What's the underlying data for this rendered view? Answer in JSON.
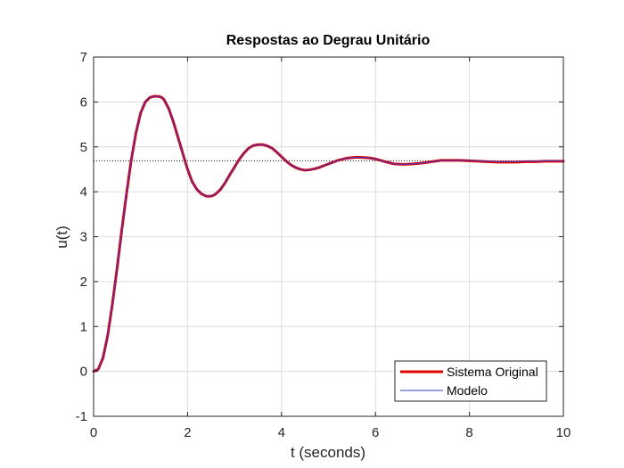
{
  "chart_data": {
    "type": "line",
    "title": "Respostas ao Degrau Unitário",
    "xlabel": "t (seconds)",
    "ylabel": "u(t)",
    "xlim": [
      0,
      10
    ],
    "ylim": [
      -1,
      7
    ],
    "xticks": [
      0,
      2,
      4,
      6,
      8,
      10
    ],
    "yticks": [
      -1,
      0,
      1,
      2,
      3,
      4,
      5,
      6,
      7
    ],
    "grid": true,
    "legend_position": "bottom-right",
    "steady_state_value": 4.69,
    "series": [
      {
        "name": "Sistema Original",
        "color": "#e00000",
        "style": "solid-thick",
        "x": [
          0,
          0.1,
          0.2,
          0.3,
          0.4,
          0.5,
          0.6,
          0.7,
          0.8,
          0.9,
          1.0,
          1.1,
          1.2,
          1.3,
          1.4,
          1.45,
          1.5,
          1.6,
          1.7,
          1.8,
          1.9,
          2.0,
          2.1,
          2.2,
          2.3,
          2.4,
          2.5,
          2.55,
          2.6,
          2.7,
          2.8,
          2.9,
          3.0,
          3.1,
          3.2,
          3.3,
          3.4,
          3.5,
          3.6,
          3.7,
          3.8,
          3.9,
          4.0,
          4.1,
          4.2,
          4.3,
          4.4,
          4.5,
          4.6,
          4.7,
          4.8,
          4.9,
          5.0,
          5.2,
          5.4,
          5.6,
          5.8,
          5.9,
          6.0,
          6.2,
          6.4,
          6.6,
          6.8,
          7.0,
          7.2,
          7.4,
          7.6,
          7.8,
          8.0,
          8.2,
          8.4,
          8.6,
          8.8,
          9.0,
          9.2,
          9.4,
          9.6,
          9.8,
          10.0
        ],
        "y": [
          0,
          0.05,
          0.3,
          0.8,
          1.5,
          2.3,
          3.15,
          3.95,
          4.7,
          5.3,
          5.75,
          6.0,
          6.1,
          6.13,
          6.12,
          6.1,
          6.05,
          5.85,
          5.55,
          5.2,
          4.85,
          4.5,
          4.22,
          4.05,
          3.95,
          3.9,
          3.9,
          3.92,
          3.95,
          4.05,
          4.2,
          4.38,
          4.55,
          4.72,
          4.86,
          4.97,
          5.03,
          5.05,
          5.05,
          5.02,
          4.97,
          4.88,
          4.78,
          4.68,
          4.6,
          4.54,
          4.5,
          4.48,
          4.49,
          4.51,
          4.54,
          4.58,
          4.62,
          4.7,
          4.75,
          4.77,
          4.76,
          4.75,
          4.73,
          4.67,
          4.62,
          4.61,
          4.62,
          4.64,
          4.67,
          4.7,
          4.7,
          4.7,
          4.69,
          4.68,
          4.67,
          4.66,
          4.66,
          4.66,
          4.67,
          4.67,
          4.68,
          4.68,
          4.68
        ]
      },
      {
        "name": "Modelo",
        "color": "#3b3bcc",
        "style": "solid-thin",
        "x": [
          0,
          0.1,
          0.2,
          0.3,
          0.4,
          0.5,
          0.6,
          0.7,
          0.8,
          0.9,
          1.0,
          1.1,
          1.2,
          1.3,
          1.4,
          1.45,
          1.5,
          1.6,
          1.7,
          1.8,
          1.9,
          2.0,
          2.1,
          2.2,
          2.3,
          2.4,
          2.5,
          2.55,
          2.6,
          2.7,
          2.8,
          2.9,
          3.0,
          3.1,
          3.2,
          3.3,
          3.4,
          3.5,
          3.6,
          3.7,
          3.8,
          3.9,
          4.0,
          4.1,
          4.2,
          4.3,
          4.4,
          4.5,
          4.6,
          4.7,
          4.8,
          4.9,
          5.0,
          5.2,
          5.4,
          5.6,
          5.8,
          5.9,
          6.0,
          6.2,
          6.4,
          6.6,
          6.8,
          7.0,
          7.2,
          7.4,
          7.6,
          7.8,
          8.0,
          8.2,
          8.4,
          8.6,
          8.8,
          9.0,
          9.2,
          9.4,
          9.6,
          9.8,
          10.0
        ],
        "y": [
          0,
          0.05,
          0.3,
          0.8,
          1.5,
          2.3,
          3.15,
          3.95,
          4.7,
          5.3,
          5.75,
          6.0,
          6.1,
          6.13,
          6.12,
          6.1,
          6.05,
          5.85,
          5.55,
          5.2,
          4.85,
          4.5,
          4.22,
          4.05,
          3.95,
          3.9,
          3.9,
          3.92,
          3.95,
          4.05,
          4.2,
          4.38,
          4.55,
          4.72,
          4.86,
          4.97,
          5.03,
          5.05,
          5.05,
          5.02,
          4.97,
          4.88,
          4.78,
          4.68,
          4.6,
          4.54,
          4.5,
          4.48,
          4.49,
          4.51,
          4.54,
          4.58,
          4.62,
          4.7,
          4.75,
          4.77,
          4.76,
          4.75,
          4.73,
          4.67,
          4.62,
          4.61,
          4.62,
          4.64,
          4.67,
          4.7,
          4.7,
          4.7,
          4.7,
          4.69,
          4.68,
          4.67,
          4.67,
          4.67,
          4.68,
          4.68,
          4.69,
          4.69,
          4.69
        ]
      }
    ]
  }
}
